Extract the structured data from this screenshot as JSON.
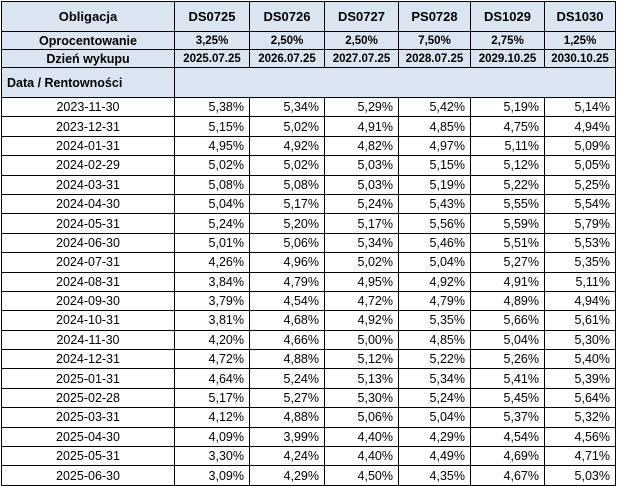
{
  "headers": {
    "label": "Obligacja",
    "bonds": [
      "DS0725",
      "DS0726",
      "DS0727",
      "PS0728",
      "DS1029",
      "DS1030"
    ]
  },
  "coupon": {
    "label": "Oprocentowanie",
    "values": [
      "3,25%",
      "2,50%",
      "2,50%",
      "7,50%",
      "2,75%",
      "1,25%"
    ]
  },
  "maturity": {
    "label": "Dzień wykupu",
    "values": [
      "2025.07.25",
      "2026.07.25",
      "2027.07.25",
      "2028.07.25",
      "2029.10.25",
      "2030.10.25"
    ]
  },
  "subheader": {
    "label": "Data / Rentowności"
  },
  "rows": [
    {
      "date": "2023-11-30",
      "values": [
        "5,38%",
        "5,34%",
        "5,29%",
        "5,42%",
        "5,19%",
        "5,14%"
      ]
    },
    {
      "date": "2023-12-31",
      "values": [
        "5,15%",
        "5,02%",
        "4,91%",
        "4,85%",
        "4,75%",
        "4,94%"
      ]
    },
    {
      "date": "2024-01-31",
      "values": [
        "4,95%",
        "4,92%",
        "4,82%",
        "4,97%",
        "5,11%",
        "5,09%"
      ]
    },
    {
      "date": "2024-02-29",
      "values": [
        "5,02%",
        "5,02%",
        "5,03%",
        "5,15%",
        "5,12%",
        "5,05%"
      ]
    },
    {
      "date": "2024-03-31",
      "values": [
        "5,08%",
        "5,08%",
        "5,03%",
        "5,19%",
        "5,22%",
        "5,25%"
      ]
    },
    {
      "date": "2024-04-30",
      "values": [
        "5,04%",
        "5,17%",
        "5,24%",
        "5,43%",
        "5,55%",
        "5,54%"
      ]
    },
    {
      "date": "2024-05-31",
      "values": [
        "5,24%",
        "5,20%",
        "5,17%",
        "5,56%",
        "5,59%",
        "5,79%"
      ]
    },
    {
      "date": "2024-06-30",
      "values": [
        "5,01%",
        "5,06%",
        "5,34%",
        "5,46%",
        "5,51%",
        "5,53%"
      ]
    },
    {
      "date": "2024-07-31",
      "values": [
        "4,26%",
        "4,96%",
        "5,02%",
        "5,04%",
        "5,27%",
        "5,35%"
      ]
    },
    {
      "date": "2024-08-31",
      "values": [
        "3,84%",
        "4,79%",
        "4,95%",
        "4,92%",
        "4,91%",
        "5,11%"
      ]
    },
    {
      "date": "2024-09-30",
      "values": [
        "3,79%",
        "4,54%",
        "4,72%",
        "4,79%",
        "4,89%",
        "4,94%"
      ]
    },
    {
      "date": "2024-10-31",
      "values": [
        "3,81%",
        "4,68%",
        "4,92%",
        "5,35%",
        "5,66%",
        "5,61%"
      ]
    },
    {
      "date": "2024-11-30",
      "values": [
        "4,20%",
        "4,66%",
        "5,00%",
        "4,85%",
        "5,04%",
        "5,30%"
      ]
    },
    {
      "date": "2024-12-31",
      "values": [
        "4,72%",
        "4,88%",
        "5,12%",
        "5,22%",
        "5,26%",
        "5,40%"
      ]
    },
    {
      "date": "2025-01-31",
      "values": [
        "4,64%",
        "5,24%",
        "5,13%",
        "5,34%",
        "5,41%",
        "5,39%"
      ]
    },
    {
      "date": "2025-02-28",
      "values": [
        "5,17%",
        "5,27%",
        "5,30%",
        "5,24%",
        "5,45%",
        "5,64%"
      ]
    },
    {
      "date": "2025-03-31",
      "values": [
        "4,12%",
        "4,88%",
        "5,06%",
        "5,04%",
        "5,37%",
        "5,32%"
      ]
    },
    {
      "date": "2025-04-30",
      "values": [
        "4,09%",
        "3,99%",
        "4,40%",
        "4,29%",
        "4,54%",
        "4,56%"
      ]
    },
    {
      "date": "2025-05-31",
      "values": [
        "3,30%",
        "4,24%",
        "4,40%",
        "4,49%",
        "4,69%",
        "4,71%"
      ]
    },
    {
      "date": "2025-06-30",
      "values": [
        "3,09%",
        "4,29%",
        "4,50%",
        "4,35%",
        "4,67%",
        "5,03%"
      ]
    }
  ]
}
